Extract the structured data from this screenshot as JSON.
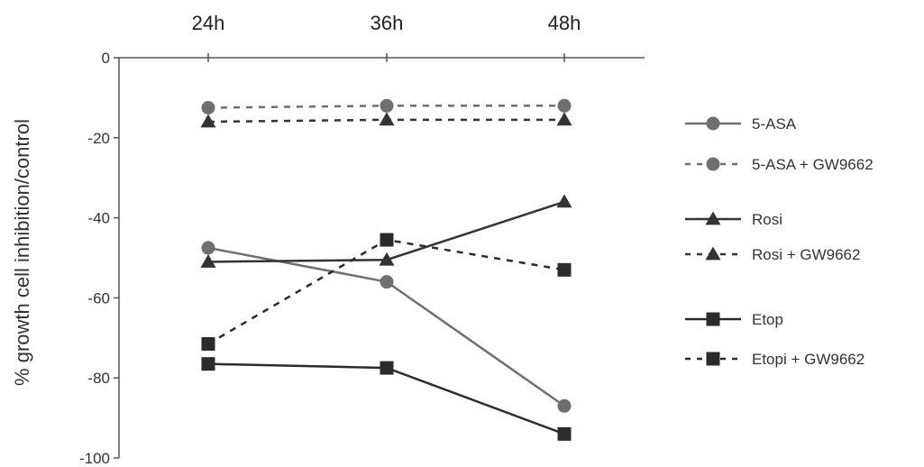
{
  "chart_data": {
    "type": "line",
    "title": "",
    "xlabel": "",
    "ylabel": "% growth cell inhibition/control",
    "categories": [
      "24h",
      "36h",
      "48h"
    ],
    "ylim": [
      -100,
      0
    ],
    "yticks": [
      0,
      -20,
      -40,
      -60,
      -80,
      -100
    ],
    "grid": false,
    "legend_position": "right",
    "series": [
      {
        "name": "5-ASA",
        "values": [
          -47.5,
          -56,
          -87
        ],
        "marker": "circle",
        "dashed": false,
        "color": "#6f6f6f"
      },
      {
        "name": "5-ASA + GW9662",
        "values": [
          -12.5,
          -12,
          -12
        ],
        "marker": "circle",
        "dashed": true,
        "color": "#6f6f6f"
      },
      {
        "name": "Rosi",
        "values": [
          -51,
          -50.5,
          -36
        ],
        "marker": "triangle",
        "dashed": false,
        "color": "#333333"
      },
      {
        "name": "Rosi + GW9662",
        "values": [
          -16,
          -15.5,
          -15.5
        ],
        "marker": "triangle",
        "dashed": true,
        "color": "#333333"
      },
      {
        "name": "Etop",
        "values": [
          -76.5,
          -77.5,
          -94
        ],
        "marker": "square",
        "dashed": false,
        "color": "#2b2b2b"
      },
      {
        "name": "Etopi + GW9662",
        "values": [
          -71.5,
          -45.5,
          -53
        ],
        "marker": "square",
        "dashed": true,
        "color": "#2b2b2b"
      }
    ]
  }
}
